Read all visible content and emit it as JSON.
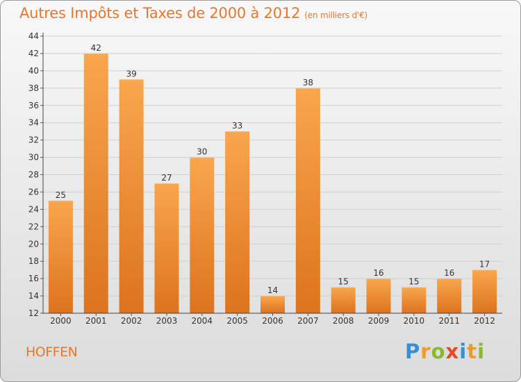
{
  "chart_data": {
    "type": "bar",
    "title": "Autres Impôts et Taxes de 2000 à 2012",
    "subtitle": "(en milliers d'€)",
    "categories": [
      "2000",
      "2001",
      "2002",
      "2003",
      "2004",
      "2005",
      "2006",
      "2007",
      "2008",
      "2009",
      "2010",
      "2011",
      "2012"
    ],
    "values": [
      25,
      42,
      39,
      27,
      30,
      33,
      14,
      38,
      15,
      16,
      15,
      16,
      17
    ],
    "ylim": [
      12,
      44
    ],
    "yticks": [
      12,
      14,
      16,
      18,
      20,
      22,
      24,
      26,
      28,
      30,
      32,
      34,
      36,
      38,
      40,
      42,
      44
    ],
    "grid": true,
    "bar_color": "#f0933f"
  },
  "location": "HOFFEN",
  "brand": {
    "name": "Proxiti",
    "letters": [
      {
        "char": "P",
        "color": "#3a8fd4"
      },
      {
        "char": "r",
        "color": "#f19a2a"
      },
      {
        "char": "o",
        "color": "#8ab92d"
      },
      {
        "char": "x",
        "color": "#e34a2a"
      },
      {
        "char": "i",
        "color": "#3a8fd4"
      },
      {
        "char": "t",
        "color": "#f19a2a"
      },
      {
        "char": "i",
        "color": "#8ab92d"
      }
    ]
  }
}
